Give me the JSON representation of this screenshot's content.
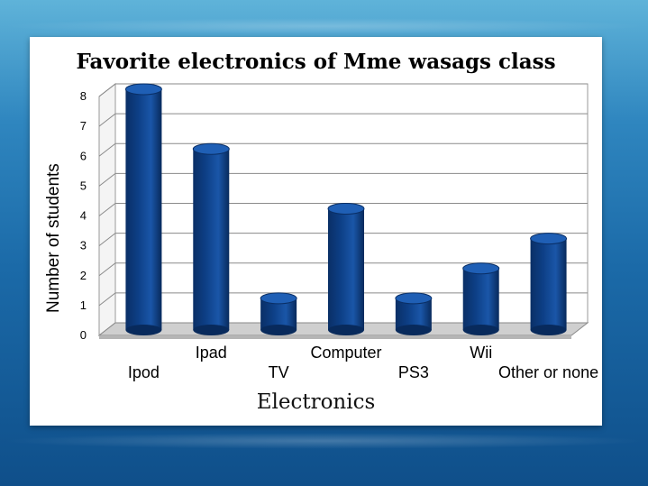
{
  "chart_data": {
    "type": "bar",
    "title": "Favorite electronics of Mme wasags class",
    "xlabel": "Electronics",
    "ylabel": "Number of students",
    "categories": [
      "Ipod",
      "Ipad",
      "TV",
      "Computer",
      "PS3",
      "Wii",
      "Other or none"
    ],
    "values": [
      8,
      6,
      1,
      4,
      1,
      2,
      3
    ],
    "ylim": [
      0,
      8
    ],
    "yticks": [
      "0",
      "1",
      "2",
      "3",
      "4",
      "5",
      "6",
      "7",
      "8"
    ],
    "grid": true,
    "bar_color": "#0d3f86"
  }
}
